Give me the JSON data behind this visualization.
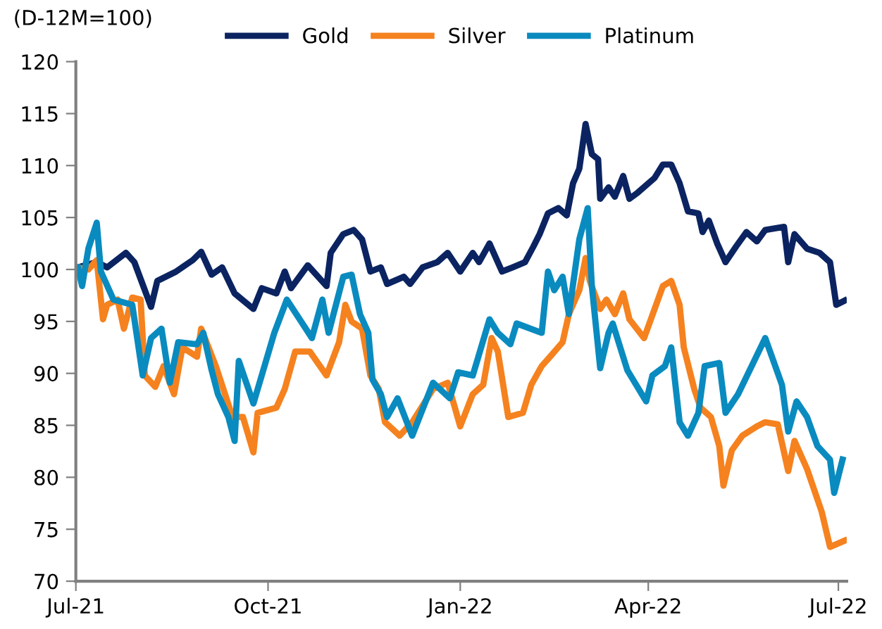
{
  "chart_data": {
    "type": "line",
    "ylabel": "(D-12M=100)",
    "xlim": [
      "2021-07-01",
      "2022-07-05"
    ],
    "xticks": [
      {
        "value": "2021-07-01",
        "label": "Jul-21"
      },
      {
        "value": "2021-10-01",
        "label": "Oct-21"
      },
      {
        "value": "2022-01-01",
        "label": "Jan-22"
      },
      {
        "value": "2022-04-01",
        "label": "Apr-22"
      },
      {
        "value": "2022-07-01",
        "label": "Jul-22"
      }
    ],
    "ylim": [
      70,
      120
    ],
    "yticks": [
      70,
      75,
      80,
      85,
      90,
      95,
      100,
      105,
      110,
      115,
      120
    ],
    "grid": false,
    "legend": "top",
    "marker": "none",
    "line_style": "solid",
    "series": [
      {
        "name": "Gold",
        "color": "#0b2461",
        "x": [
          "2021-07-02",
          "2021-07-11",
          "2021-07-16",
          "2021-07-25",
          "2021-07-29",
          "2021-08-06",
          "2021-08-09",
          "2021-08-18",
          "2021-08-26",
          "2021-08-30",
          "2021-09-04",
          "2021-09-09",
          "2021-09-15",
          "2021-09-24",
          "2021-09-28",
          "2021-10-05",
          "2021-10-09",
          "2021-10-12",
          "2021-10-20",
          "2021-10-29",
          "2021-10-31",
          "2021-11-06",
          "2021-11-11",
          "2021-11-15",
          "2021-11-19",
          "2021-11-24",
          "2021-11-27",
          "2021-12-05",
          "2021-12-08",
          "2021-12-14",
          "2021-12-21",
          "2021-12-26",
          "2022-01-01",
          "2022-01-07",
          "2022-01-10",
          "2022-01-15",
          "2022-01-21",
          "2022-01-26",
          "2022-02-01",
          "2022-02-05",
          "2022-02-08",
          "2022-02-12",
          "2022-02-17",
          "2022-02-21",
          "2022-02-24",
          "2022-02-27",
          "2022-03-02",
          "2022-03-05",
          "2022-03-08",
          "2022-03-09",
          "2022-03-13",
          "2022-03-16",
          "2022-03-20",
          "2022-03-23",
          "2022-03-27",
          "2022-04-04",
          "2022-04-08",
          "2022-04-12",
          "2022-04-16",
          "2022-04-20",
          "2022-04-25",
          "2022-04-27",
          "2022-04-30",
          "2022-05-04",
          "2022-05-08",
          "2022-05-13",
          "2022-05-18",
          "2022-05-23",
          "2022-05-27",
          "2022-06-05",
          "2022-06-07",
          "2022-06-10",
          "2022-06-16",
          "2022-06-22",
          "2022-06-27",
          "2022-06-30",
          "2022-07-04"
        ],
        "values": [
          100.2,
          100.7,
          100.2,
          101.6,
          100.7,
          96.4,
          98.9,
          99.8,
          100.9,
          101.7,
          99.5,
          100.2,
          97.7,
          96.2,
          98.2,
          97.7,
          99.8,
          98.2,
          100.4,
          98.4,
          101.6,
          103.4,
          103.8,
          102.9,
          99.8,
          100.2,
          98.6,
          99.3,
          98.6,
          100.2,
          100.7,
          101.6,
          99.8,
          101.6,
          100.7,
          102.5,
          99.8,
          100.2,
          100.7,
          102.2,
          103.4,
          105.4,
          105.9,
          105.2,
          108.3,
          109.7,
          114.0,
          111.1,
          110.6,
          106.8,
          107.9,
          107.0,
          109.0,
          106.8,
          107.4,
          108.8,
          110.1,
          110.1,
          108.3,
          105.6,
          105.4,
          103.6,
          104.7,
          102.5,
          100.7,
          102.2,
          103.6,
          102.7,
          103.8,
          104.1,
          100.7,
          103.4,
          102.0,
          101.6,
          100.7,
          96.6,
          97.0
        ]
      },
      {
        "name": "Silver",
        "color": "#f5821f",
        "x": [
          "2021-07-02",
          "2021-07-07",
          "2021-07-11",
          "2021-07-14",
          "2021-07-16",
          "2021-07-21",
          "2021-07-24",
          "2021-07-28",
          "2021-08-01",
          "2021-08-03",
          "2021-08-08",
          "2021-08-12",
          "2021-08-17",
          "2021-08-21",
          "2021-08-28",
          "2021-08-30",
          "2021-09-06",
          "2021-09-14",
          "2021-09-19",
          "2021-09-24",
          "2021-09-26",
          "2021-10-05",
          "2021-10-09",
          "2021-10-14",
          "2021-10-21",
          "2021-10-29",
          "2021-11-04",
          "2021-11-07",
          "2021-11-10",
          "2021-11-15",
          "2021-11-19",
          "2021-11-23",
          "2021-11-26",
          "2021-12-03",
          "2021-12-09",
          "2021-12-19",
          "2021-12-26",
          "2022-01-01",
          "2022-01-07",
          "2022-01-12",
          "2022-01-16",
          "2022-01-19",
          "2022-01-24",
          "2022-01-31",
          "2022-02-04",
          "2022-02-09",
          "2022-02-13",
          "2022-02-19",
          "2022-02-22",
          "2022-02-27",
          "2022-03-02",
          "2022-03-04",
          "2022-03-09",
          "2022-03-12",
          "2022-03-16",
          "2022-03-20",
          "2022-03-23",
          "2022-03-30",
          "2022-04-08",
          "2022-04-12",
          "2022-04-16",
          "2022-04-18",
          "2022-04-23",
          "2022-04-26",
          "2022-05-01",
          "2022-05-05",
          "2022-05-07",
          "2022-05-11",
          "2022-05-16",
          "2022-05-23",
          "2022-05-27",
          "2022-06-02",
          "2022-06-07",
          "2022-06-10",
          "2022-06-16",
          "2022-06-23",
          "2022-06-27",
          "2022-07-04"
        ],
        "values": [
          100.2,
          100.0,
          100.9,
          95.2,
          96.6,
          97.1,
          94.3,
          97.3,
          97.1,
          89.8,
          88.7,
          90.7,
          88.0,
          92.5,
          91.6,
          94.3,
          90.7,
          85.8,
          85.8,
          82.4,
          86.2,
          86.7,
          88.5,
          92.1,
          92.1,
          89.8,
          93.0,
          96.6,
          95.0,
          94.3,
          89.8,
          88.5,
          85.3,
          84.0,
          85.3,
          88.5,
          89.1,
          84.9,
          88.0,
          88.9,
          93.4,
          92.1,
          85.8,
          86.2,
          88.9,
          90.7,
          91.6,
          93.0,
          95.7,
          98.0,
          101.1,
          98.9,
          96.2,
          97.1,
          95.7,
          97.7,
          95.2,
          93.4,
          98.4,
          98.9,
          96.6,
          92.5,
          88.5,
          86.7,
          85.8,
          83.0,
          79.2,
          82.6,
          84.0,
          84.9,
          85.3,
          85.1,
          80.6,
          83.5,
          80.8,
          76.7,
          73.3,
          73.9
        ]
      },
      {
        "name": "Platinum",
        "color": "#0a8bbf",
        "x": [
          "2021-07-02",
          "2021-07-04",
          "2021-07-07",
          "2021-07-11",
          "2021-07-13",
          "2021-07-19",
          "2021-07-28",
          "2021-08-02",
          "2021-08-06",
          "2021-08-11",
          "2021-08-15",
          "2021-08-19",
          "2021-08-28",
          "2021-08-31",
          "2021-09-04",
          "2021-09-07",
          "2021-09-12",
          "2021-09-15",
          "2021-09-17",
          "2021-09-24",
          "2021-10-04",
          "2021-10-10",
          "2021-10-22",
          "2021-10-27",
          "2021-10-30",
          "2021-11-06",
          "2021-11-10",
          "2021-11-14",
          "2021-11-18",
          "2021-11-20",
          "2021-11-24",
          "2021-11-27",
          "2021-12-02",
          "2021-12-09",
          "2021-12-19",
          "2021-12-27",
          "2021-12-31",
          "2022-01-07",
          "2022-01-15",
          "2022-01-19",
          "2022-01-25",
          "2022-01-28",
          "2022-02-09",
          "2022-02-12",
          "2022-02-15",
          "2022-02-19",
          "2022-02-22",
          "2022-02-27",
          "2022-03-03",
          "2022-03-05",
          "2022-03-09",
          "2022-03-13",
          "2022-03-15",
          "2022-03-22",
          "2022-03-31",
          "2022-04-03",
          "2022-04-09",
          "2022-04-12",
          "2022-04-16",
          "2022-04-20",
          "2022-04-25",
          "2022-04-28",
          "2022-05-05",
          "2022-05-08",
          "2022-05-14",
          "2022-05-27",
          "2022-06-04",
          "2022-06-07",
          "2022-06-11",
          "2022-06-16",
          "2022-06-21",
          "2022-06-27",
          "2022-06-29",
          "2022-07-03"
        ],
        "values": [
          100.2,
          98.4,
          102.0,
          104.5,
          99.8,
          97.1,
          96.6,
          89.8,
          93.4,
          94.3,
          89.1,
          93.0,
          92.8,
          93.9,
          90.3,
          88.0,
          85.8,
          83.5,
          91.2,
          87.1,
          93.9,
          97.1,
          93.4,
          97.1,
          93.9,
          99.3,
          99.5,
          95.7,
          93.9,
          89.4,
          88.0,
          85.8,
          87.6,
          84.0,
          89.1,
          87.6,
          90.1,
          89.8,
          95.2,
          93.9,
          92.8,
          94.8,
          93.9,
          99.8,
          98.0,
          99.3,
          95.7,
          102.9,
          105.9,
          98.4,
          90.5,
          93.9,
          94.8,
          90.3,
          87.3,
          89.8,
          90.7,
          92.5,
          85.3,
          84.0,
          86.2,
          90.7,
          91.0,
          86.2,
          88.0,
          93.4,
          88.9,
          84.4,
          87.3,
          85.8,
          83.0,
          81.7,
          78.5,
          81.7
        ]
      }
    ]
  }
}
